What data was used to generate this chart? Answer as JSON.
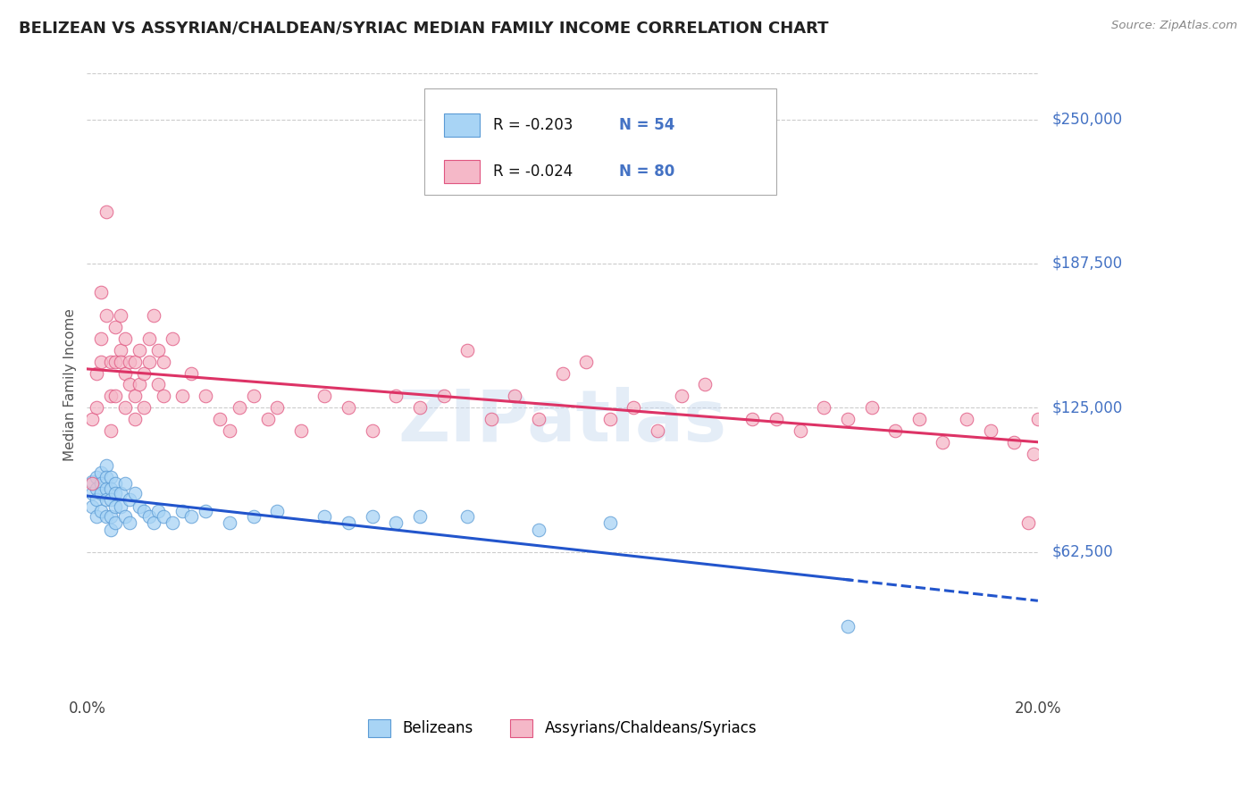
{
  "title": "BELIZEAN VS ASSYRIAN/CHALDEAN/SYRIAC MEDIAN FAMILY INCOME CORRELATION CHART",
  "source": "Source: ZipAtlas.com",
  "ylabel": "Median Family Income",
  "xlim": [
    0.0,
    0.2
  ],
  "ylim": [
    0,
    270000
  ],
  "yticks": [
    62500,
    125000,
    187500,
    250000
  ],
  "ytick_labels": [
    "$62,500",
    "$125,000",
    "$187,500",
    "$250,000"
  ],
  "xticks": [
    0.0,
    0.04,
    0.08,
    0.12,
    0.16,
    0.2
  ],
  "belizean_R": -0.203,
  "belizean_N": 54,
  "assyrian_R": -0.024,
  "assyrian_N": 80,
  "belizean_color": "#a8d4f5",
  "belizean_edge": "#5b9bd5",
  "assyrian_color": "#f5b8c8",
  "assyrian_edge": "#e05580",
  "trend_blue": "#2255cc",
  "trend_pink": "#dd3366",
  "watermark": "ZIPatlas",
  "background_color": "#ffffff",
  "grid_color": "#cccccc",
  "label_color": "#4472c4",
  "belizean_x": [
    0.001,
    0.001,
    0.001,
    0.002,
    0.002,
    0.002,
    0.002,
    0.003,
    0.003,
    0.003,
    0.003,
    0.004,
    0.004,
    0.004,
    0.004,
    0.004,
    0.005,
    0.005,
    0.005,
    0.005,
    0.005,
    0.006,
    0.006,
    0.006,
    0.006,
    0.007,
    0.007,
    0.008,
    0.008,
    0.009,
    0.009,
    0.01,
    0.011,
    0.012,
    0.013,
    0.014,
    0.015,
    0.016,
    0.018,
    0.02,
    0.022,
    0.025,
    0.03,
    0.035,
    0.04,
    0.05,
    0.055,
    0.06,
    0.065,
    0.07,
    0.08,
    0.095,
    0.11,
    0.16
  ],
  "belizean_y": [
    93000,
    88000,
    82000,
    95000,
    90000,
    85000,
    78000,
    97000,
    92000,
    88000,
    80000,
    100000,
    95000,
    90000,
    85000,
    78000,
    95000,
    90000,
    85000,
    78000,
    72000,
    92000,
    88000,
    82000,
    75000,
    88000,
    82000,
    92000,
    78000,
    85000,
    75000,
    88000,
    82000,
    80000,
    78000,
    75000,
    80000,
    78000,
    75000,
    80000,
    78000,
    80000,
    75000,
    78000,
    80000,
    78000,
    75000,
    78000,
    75000,
    78000,
    78000,
    72000,
    75000,
    30000
  ],
  "assyrian_x": [
    0.001,
    0.001,
    0.002,
    0.002,
    0.003,
    0.003,
    0.003,
    0.004,
    0.004,
    0.005,
    0.005,
    0.005,
    0.006,
    0.006,
    0.006,
    0.007,
    0.007,
    0.007,
    0.008,
    0.008,
    0.008,
    0.009,
    0.009,
    0.01,
    0.01,
    0.01,
    0.011,
    0.011,
    0.012,
    0.012,
    0.013,
    0.013,
    0.014,
    0.015,
    0.015,
    0.016,
    0.016,
    0.018,
    0.02,
    0.022,
    0.025,
    0.028,
    0.03,
    0.032,
    0.035,
    0.038,
    0.04,
    0.045,
    0.05,
    0.055,
    0.06,
    0.065,
    0.07,
    0.075,
    0.08,
    0.085,
    0.09,
    0.095,
    0.1,
    0.105,
    0.11,
    0.115,
    0.12,
    0.125,
    0.13,
    0.14,
    0.145,
    0.15,
    0.155,
    0.16,
    0.165,
    0.17,
    0.175,
    0.18,
    0.185,
    0.19,
    0.195,
    0.198,
    0.199,
    0.2
  ],
  "assyrian_y": [
    120000,
    92000,
    140000,
    125000,
    155000,
    145000,
    175000,
    165000,
    210000,
    130000,
    145000,
    115000,
    160000,
    145000,
    130000,
    150000,
    165000,
    145000,
    140000,
    155000,
    125000,
    135000,
    145000,
    130000,
    120000,
    145000,
    135000,
    150000,
    140000,
    125000,
    155000,
    145000,
    165000,
    135000,
    150000,
    145000,
    130000,
    155000,
    130000,
    140000,
    130000,
    120000,
    115000,
    125000,
    130000,
    120000,
    125000,
    115000,
    130000,
    125000,
    115000,
    130000,
    125000,
    130000,
    150000,
    120000,
    130000,
    120000,
    140000,
    145000,
    120000,
    125000,
    115000,
    130000,
    135000,
    120000,
    120000,
    115000,
    125000,
    120000,
    125000,
    115000,
    120000,
    110000,
    120000,
    115000,
    110000,
    75000,
    105000,
    120000
  ]
}
